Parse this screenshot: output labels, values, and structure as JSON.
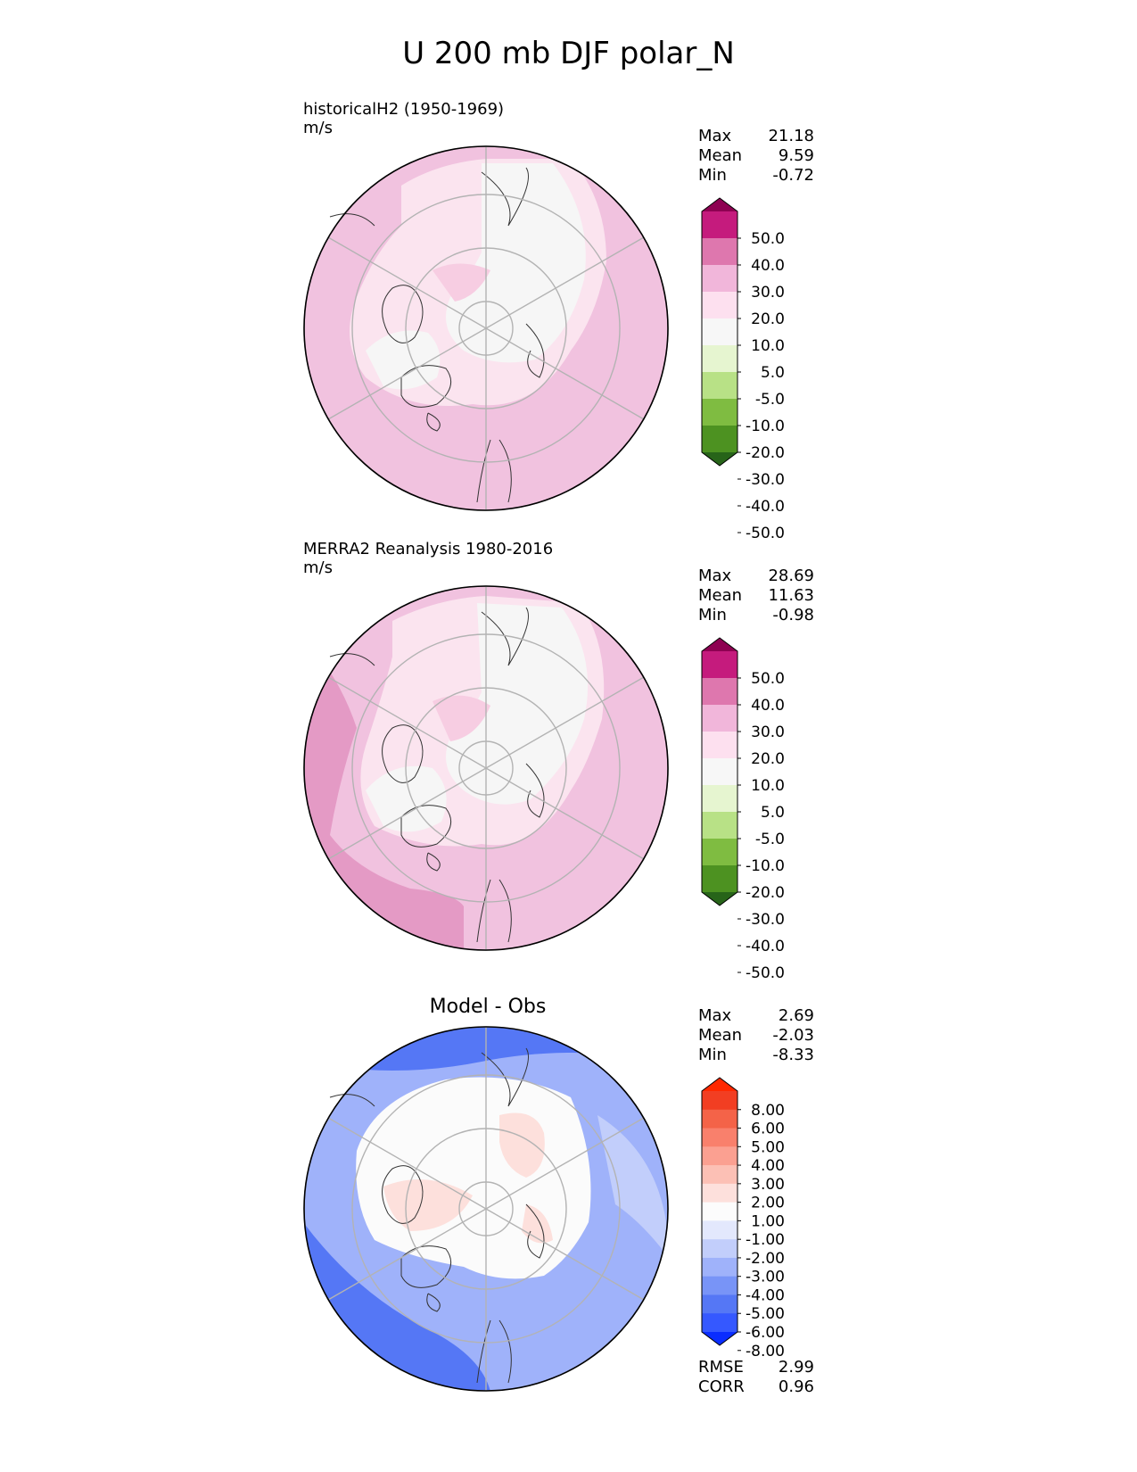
{
  "title": "U 200 mb DJF polar_N",
  "colors": {
    "pink_levels": [
      "#276419",
      "#4d9221",
      "#7fbc41",
      "#b8e186",
      "#e6f5d0",
      "#f7f7f7",
      "#fde0ef",
      "#f1b6da",
      "#de77ae",
      "#c51b7d",
      "#8e0152"
    ],
    "diff_levels": [
      "#0a2dff",
      "#3558ff",
      "#5577f5",
      "#7894f7",
      "#9fb2fa",
      "#c2cefb",
      "#e3e8fd",
      "#fcfcfc",
      "#fde0dc",
      "#fcc0b5",
      "#fba091",
      "#f9806c",
      "#f46348",
      "#f23e22",
      "#ff2800"
    ]
  },
  "panels": [
    {
      "name": "model",
      "title_line1": "historicalH2 (1950-1969)",
      "title_line2": "m/s",
      "stats": [
        {
          "label": "Max",
          "value": "21.18"
        },
        {
          "label": "Mean",
          "value": "9.59"
        },
        {
          "label": "Min",
          "value": "-0.72"
        }
      ]
    },
    {
      "name": "obs",
      "title_line1": "MERRA2 Reanalysis 1980-2016",
      "title_line2": "m/s",
      "stats": [
        {
          "label": "Max",
          "value": "28.69"
        },
        {
          "label": "Mean",
          "value": "11.63"
        },
        {
          "label": "Min",
          "value": "-0.98"
        }
      ]
    },
    {
      "name": "diff",
      "title": "Model - Obs",
      "stats": [
        {
          "label": "Max",
          "value": "2.69"
        },
        {
          "label": "Mean",
          "value": "-2.03"
        },
        {
          "label": "Min",
          "value": "-8.33"
        }
      ],
      "extra_stats": [
        {
          "label": "RMSE",
          "value": "2.99"
        },
        {
          "label": "CORR",
          "value": "0.96"
        }
      ]
    }
  ],
  "chart_data": [
    {
      "type": "heatmap",
      "projection": "north-polar-stereographic",
      "title": "historicalH2 (1950-1969)",
      "units": "m/s",
      "colorbar_levels": [
        -50,
        -40,
        -30,
        -20,
        -10,
        -5,
        5,
        10,
        20,
        30,
        40,
        50
      ],
      "colorbar_ticks": [
        "50.0",
        "40.0",
        "30.0",
        "20.0",
        "10.0",
        "5.0",
        "-5.0",
        "-10.0",
        "-20.0",
        "-30.0",
        "-40.0",
        "-50.0"
      ],
      "extend": "both",
      "max": 21.18,
      "mean": 9.59,
      "min": -0.72
    },
    {
      "type": "heatmap",
      "projection": "north-polar-stereographic",
      "title": "MERRA2 Reanalysis 1980-2016",
      "units": "m/s",
      "colorbar_levels": [
        -50,
        -40,
        -30,
        -20,
        -10,
        -5,
        5,
        10,
        20,
        30,
        40,
        50
      ],
      "colorbar_ticks": [
        "50.0",
        "40.0",
        "30.0",
        "20.0",
        "10.0",
        "5.0",
        "-5.0",
        "-10.0",
        "-20.0",
        "-30.0",
        "-40.0",
        "-50.0"
      ],
      "extend": "both",
      "max": 28.69,
      "mean": 11.63,
      "min": -0.98
    },
    {
      "type": "heatmap",
      "projection": "north-polar-stereographic",
      "title": "Model - Obs",
      "colorbar_levels": [
        -8,
        -6,
        -5,
        -4,
        -3,
        -2,
        -1,
        1,
        2,
        3,
        4,
        5,
        6,
        8
      ],
      "colorbar_ticks": [
        "8.00",
        "6.00",
        "5.00",
        "4.00",
        "3.00",
        "2.00",
        "1.00",
        "-1.00",
        "-2.00",
        "-3.00",
        "-4.00",
        "-5.00",
        "-6.00",
        "-8.00"
      ],
      "extend": "both",
      "max": 2.69,
      "mean": -2.03,
      "min": -8.33,
      "rmse": 2.99,
      "corr": 0.96
    }
  ]
}
